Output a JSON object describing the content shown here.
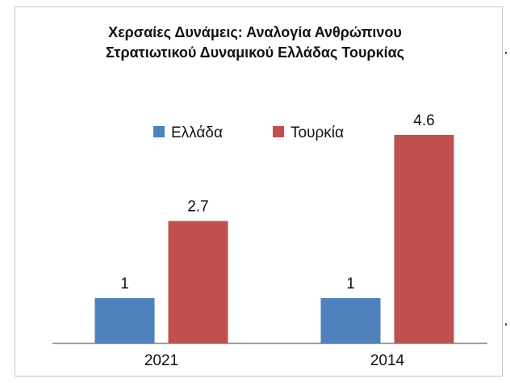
{
  "chart_data": {
    "type": "bar",
    "title": [
      "Χερσαίες Δυνάμεις: Αναλογία Ανθρώπινου",
      "Στρατιωτικού Δυναμικού Ελλάδας Τουρκίας"
    ],
    "categories": [
      "2021",
      "2014"
    ],
    "series": [
      {
        "name": "Ελλάδα",
        "color": "#4f81bd",
        "values": [
          1,
          1
        ],
        "labels": [
          "1",
          "1"
        ]
      },
      {
        "name": "Τουρκία",
        "color": "#c0504d",
        "values": [
          2.7,
          4.6
        ],
        "labels": [
          "2.7",
          "4.6"
        ]
      }
    ],
    "ylim": [
      0,
      5.4
    ],
    "grid": false,
    "legend_position": "top"
  }
}
